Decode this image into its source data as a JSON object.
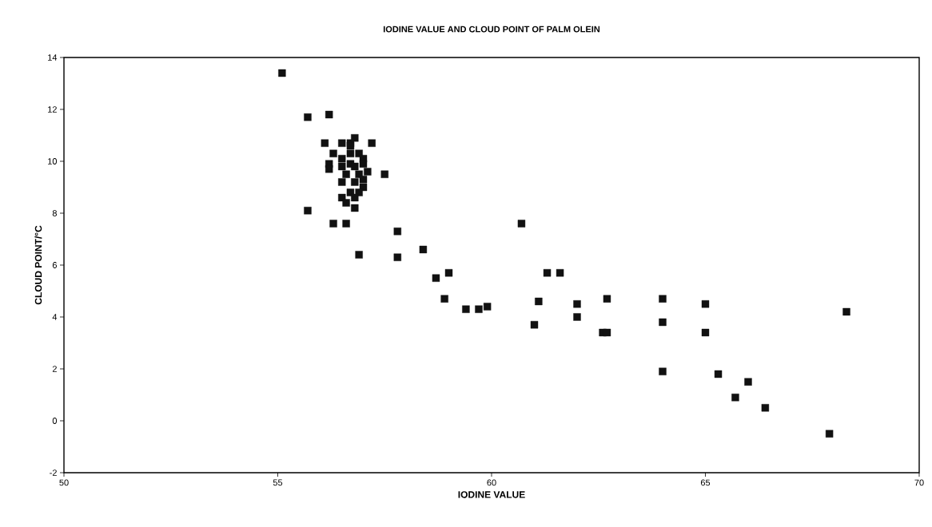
{
  "chart_data": {
    "type": "scatter",
    "title": "IODINE VALUE AND CLOUD POINT OF PALM OLEIN",
    "xlabel": "IODINE VALUE",
    "ylabel": "CLOUD POINT/°C",
    "xlim": [
      50,
      70
    ],
    "ylim": [
      -2,
      14
    ],
    "xticks": [
      50,
      55,
      60,
      65,
      70
    ],
    "yticks": [
      -2,
      0,
      2,
      4,
      6,
      8,
      10,
      12,
      14
    ],
    "grid": false,
    "marker": "square",
    "series": [
      {
        "color": "#111111",
        "x": [
          55.1,
          55.7,
          56.2,
          56.1,
          56.7,
          57.2,
          56.8,
          56.5,
          56.3,
          56.2,
          56.2,
          57.5,
          55.7,
          56.8,
          56.3,
          56.6,
          56.9,
          57.8,
          57.8,
          58.4,
          58.7,
          59.0,
          58.9,
          59.4,
          59.7,
          59.9,
          60.7,
          61.3,
          61.6,
          61.1,
          61.0,
          62.0,
          62.0,
          62.6,
          62.7,
          62.7,
          64.0,
          64.0,
          64.0,
          65.0,
          65.0,
          65.3,
          65.7,
          66.0,
          66.4,
          67.9,
          68.3,
          56.7,
          56.9,
          57.0,
          56.7,
          56.5,
          56.8,
          57.0,
          57.1,
          56.6,
          56.9,
          57.0,
          56.5,
          56.8,
          57.0,
          56.7,
          56.9,
          56.5,
          56.6,
          56.8,
          56.7,
          56.5
        ],
        "values": [
          13.4,
          11.7,
          11.8,
          10.7,
          10.7,
          10.7,
          10.9,
          10.7,
          10.3,
          9.9,
          9.7,
          9.5,
          8.1,
          8.2,
          7.6,
          7.6,
          6.4,
          7.3,
          6.3,
          6.6,
          5.5,
          5.7,
          4.7,
          4.3,
          4.3,
          4.4,
          7.6,
          5.7,
          5.7,
          4.6,
          3.7,
          4.5,
          4.0,
          3.4,
          3.4,
          4.7,
          4.7,
          3.8,
          1.9,
          4.5,
          3.4,
          1.8,
          0.9,
          1.5,
          0.5,
          -0.5,
          4.2,
          10.3,
          10.3,
          10.1,
          9.9,
          9.8,
          9.8,
          9.9,
          9.6,
          9.5,
          9.5,
          9.3,
          9.2,
          9.2,
          9.0,
          8.8,
          8.8,
          8.6,
          8.4,
          8.6,
          10.6,
          10.1
        ]
      }
    ]
  }
}
